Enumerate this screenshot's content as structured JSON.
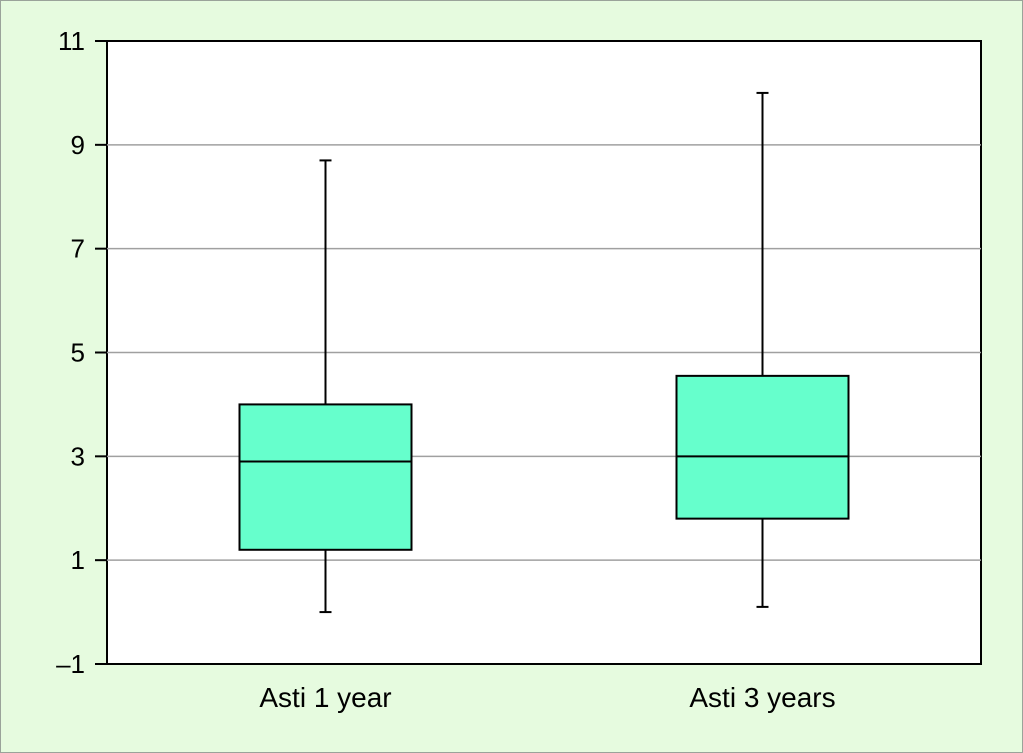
{
  "chart_data": {
    "type": "box",
    "title": "",
    "xlabel": "",
    "ylabel": "",
    "ylim": [
      -1,
      11
    ],
    "yticks": [
      "11",
      "9",
      "7",
      "5",
      "3",
      "1",
      "–1"
    ],
    "ytick_values": [
      11,
      9,
      7,
      5,
      3,
      1,
      -1
    ],
    "grid": true,
    "categories": [
      "Asti 1 year",
      "Asti 3 years"
    ],
    "boxes": [
      {
        "min": 0.0,
        "q1": 1.2,
        "median": 2.9,
        "q3": 4.0,
        "max": 8.7
      },
      {
        "min": 0.1,
        "q1": 1.8,
        "median": 3.0,
        "q3": 4.55,
        "max": 10.0
      }
    ],
    "colors": {
      "background": "#e6fbdf",
      "plot_area": "#ffffff",
      "box_fill": "#66ffcc",
      "gridline": "#a0a0a0",
      "stroke": "#000000"
    }
  }
}
